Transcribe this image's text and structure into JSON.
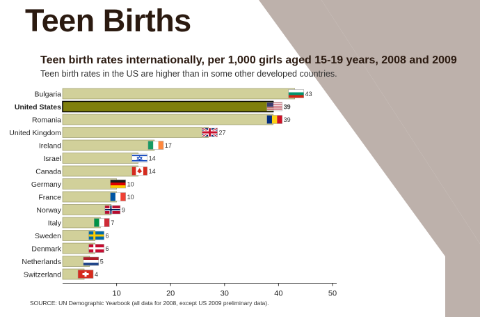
{
  "header": {
    "title": "Teen Births",
    "subtitle": "Teen birth rates internationally, per 1,000 girls aged 15-19 years, 2008 and 2009",
    "description": "Teen birth rates in the US are higher than in some other developed countries."
  },
  "footer": {
    "source": "SOURCE: UN Demographic Yearbook (all data for 2008, except US 2009 preliminary data)."
  },
  "colors": {
    "bar": "#d1d09a",
    "bar_highlight": "#7f7f0c",
    "bar_border": "#8a8a5a",
    "decor": "#bdb1ab"
  },
  "chart_data": {
    "type": "bar",
    "orientation": "horizontal",
    "categories": [
      "Bulgaria",
      "United States",
      "Romania",
      "United Kingdom",
      "Ireland",
      "Israel",
      "Canada",
      "Germany",
      "France",
      "Norway",
      "Italy",
      "Sweden",
      "Denmark",
      "Netherlands",
      "Switzerland"
    ],
    "values": [
      43,
      39,
      39,
      27,
      17,
      14,
      14,
      10,
      10,
      9,
      7,
      6,
      6,
      5,
      4
    ],
    "highlight": "United States",
    "flags": [
      "bulgaria-flag",
      "us-flag",
      "romania-flag",
      "uk-flag",
      "ireland-flag",
      "israel-flag",
      "canada-flag",
      "germany-flag",
      "france-flag",
      "norway-flag",
      "italy-flag",
      "sweden-flag",
      "denmark-flag",
      "netherlands-flag",
      "switzerland-flag"
    ],
    "xticks": [
      10,
      20,
      30,
      40,
      50
    ],
    "xlim": [
      0,
      53
    ],
    "grid": false
  }
}
